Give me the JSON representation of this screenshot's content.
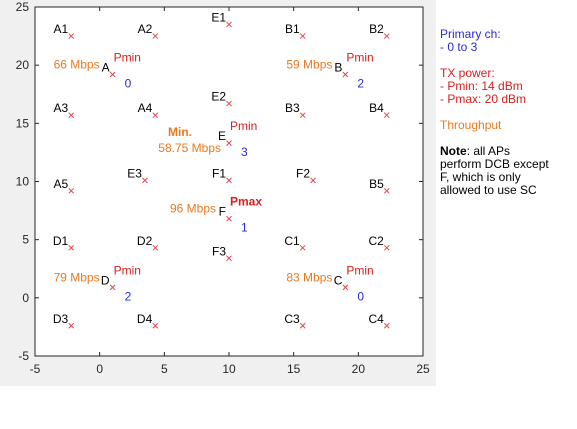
{
  "chart_data": {
    "type": "scatter",
    "xlim": [
      -5,
      25
    ],
    "ylim": [
      -5,
      25
    ],
    "xticks": [
      "-5",
      "0",
      "5",
      "10",
      "15",
      "20",
      "25"
    ],
    "yticks": [
      "-5",
      "0",
      "5",
      "10",
      "15",
      "20",
      "25"
    ],
    "marker_color": "#e8434a",
    "points": [
      {
        "label": "A1",
        "x": -2.2,
        "y": 22.5
      },
      {
        "label": "A2",
        "x": 4.3,
        "y": 22.5
      },
      {
        "label": "E1",
        "x": 10.0,
        "y": 23.5
      },
      {
        "label": "B1",
        "x": 15.7,
        "y": 22.5
      },
      {
        "label": "B2",
        "x": 22.2,
        "y": 22.5
      },
      {
        "label": "A",
        "x": 1.0,
        "y": 19.2
      },
      {
        "label": "B",
        "x": 19.0,
        "y": 19.2
      },
      {
        "label": "A3",
        "x": -2.2,
        "y": 15.7
      },
      {
        "label": "A4",
        "x": 4.3,
        "y": 15.7
      },
      {
        "label": "E2",
        "x": 10.0,
        "y": 16.7
      },
      {
        "label": "B3",
        "x": 15.7,
        "y": 15.7
      },
      {
        "label": "B4",
        "x": 22.2,
        "y": 15.7
      },
      {
        "label": "E",
        "x": 10.0,
        "y": 13.3
      },
      {
        "label": "A5",
        "x": -2.2,
        "y": 9.2
      },
      {
        "label": "E3",
        "x": 3.5,
        "y": 10.1
      },
      {
        "label": "F1",
        "x": 10.0,
        "y": 10.1
      },
      {
        "label": "F2",
        "x": 16.5,
        "y": 10.1
      },
      {
        "label": "B5",
        "x": 22.2,
        "y": 9.2
      },
      {
        "label": "F",
        "x": 10.0,
        "y": 6.8
      },
      {
        "label": "D1",
        "x": -2.2,
        "y": 4.3
      },
      {
        "label": "D2",
        "x": 4.3,
        "y": 4.3
      },
      {
        "label": "F3",
        "x": 10.0,
        "y": 3.4
      },
      {
        "label": "C1",
        "x": 15.7,
        "y": 4.3
      },
      {
        "label": "C2",
        "x": 22.2,
        "y": 4.3
      },
      {
        "label": "D",
        "x": 1.0,
        "y": 0.9
      },
      {
        "label": "C",
        "x": 19.0,
        "y": 0.9
      },
      {
        "label": "D3",
        "x": -2.2,
        "y": -2.4
      },
      {
        "label": "D4",
        "x": 4.3,
        "y": -2.4
      },
      {
        "label": "C3",
        "x": 15.7,
        "y": -2.4
      },
      {
        "label": "C4",
        "x": 22.2,
        "y": -2.4
      }
    ],
    "annotations": [
      {
        "ap": "A",
        "throughput": "66 Mbps",
        "power": "Pmin",
        "channel": "0"
      },
      {
        "ap": "B",
        "throughput": "59 Mbps",
        "power": "Pmin",
        "channel": "2"
      },
      {
        "ap": "E",
        "throughput": "58.75 Mbps",
        "throughput_prefix": "Min.",
        "power": "Pmin",
        "channel": "3"
      },
      {
        "ap": "F",
        "throughput": "96 Mbps",
        "power": "Pmax",
        "channel": "1"
      },
      {
        "ap": "D",
        "throughput": "79 Mbps",
        "power": "Pmin",
        "channel": "2"
      },
      {
        "ap": "C",
        "throughput": "83 Mbps",
        "power": "Pmin",
        "channel": "0"
      }
    ],
    "colors": {
      "throughput": "#ea7a20",
      "pmin": "#d62020",
      "pmax": "#d62020",
      "channel": "#2b2bcf",
      "plot_bg": "#f0f0f0"
    }
  },
  "legend": {
    "primary_title": "Primary ch:",
    "primary_value": " - 0 to 3",
    "tx_title": "TX power:",
    "tx_pmin": " - Pmin: 14 dBm",
    "tx_pmax": " - Pmax: 20 dBm",
    "throughput_title": "Throughput",
    "note_head": "Note",
    "note_line1": ": all APs",
    "note_line2": "perform DCB except",
    "note_line3": "F, which is only",
    "note_line4": "allowed to use SC"
  }
}
